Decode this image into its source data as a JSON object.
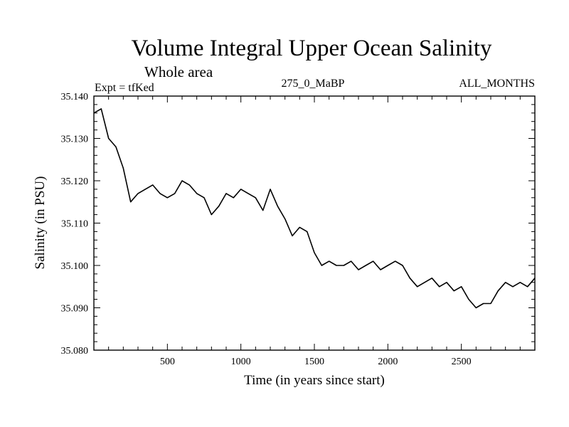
{
  "chart_data": {
    "type": "line",
    "title": "Volume Integral Upper Ocean Salinity",
    "subtitle": "Whole area",
    "experiment": "Expt = tfKed",
    "period": "275_0_MaBP",
    "months": "ALL_MONTHS",
    "xlabel": "Time (in years since start)",
    "ylabel": "Salinity (in PSU)",
    "xlim": [
      0,
      3000
    ],
    "ylim": [
      35.08,
      35.14
    ],
    "x_ticks": [
      500,
      1000,
      1500,
      2000,
      2500
    ],
    "y_ticks": [
      "35.080",
      "35.090",
      "35.100",
      "35.110",
      "35.120",
      "35.130",
      "35.140"
    ],
    "grid": false,
    "series": [
      {
        "color": "#000000",
        "x": [
          0,
          50,
          100,
          150,
          200,
          250,
          300,
          350,
          400,
          450,
          500,
          550,
          600,
          650,
          700,
          750,
          800,
          850,
          900,
          950,
          1000,
          1050,
          1100,
          1150,
          1200,
          1250,
          1300,
          1350,
          1400,
          1450,
          1500,
          1550,
          1600,
          1650,
          1700,
          1750,
          1800,
          1850,
          1900,
          1950,
          2000,
          2050,
          2100,
          2150,
          2200,
          2250,
          2300,
          2350,
          2400,
          2450,
          2500,
          2550,
          2600,
          2650,
          2700,
          2750,
          2800,
          2850,
          2900,
          2950,
          3000
        ],
        "y": [
          35.136,
          35.137,
          35.13,
          35.128,
          35.123,
          35.115,
          35.117,
          35.118,
          35.119,
          35.117,
          35.116,
          35.117,
          35.12,
          35.119,
          35.117,
          35.116,
          35.112,
          35.114,
          35.117,
          35.116,
          35.118,
          35.117,
          35.116,
          35.113,
          35.118,
          35.114,
          35.111,
          35.107,
          35.109,
          35.108,
          35.103,
          35.1,
          35.101,
          35.1,
          35.1,
          35.101,
          35.099,
          35.1,
          35.101,
          35.099,
          35.1,
          35.101,
          35.1,
          35.097,
          35.095,
          35.096,
          35.097,
          35.095,
          35.096,
          35.094,
          35.095,
          35.092,
          35.09,
          35.091,
          35.091,
          35.094,
          35.096,
          35.095,
          35.096,
          35.095,
          35.097
        ]
      }
    ]
  }
}
